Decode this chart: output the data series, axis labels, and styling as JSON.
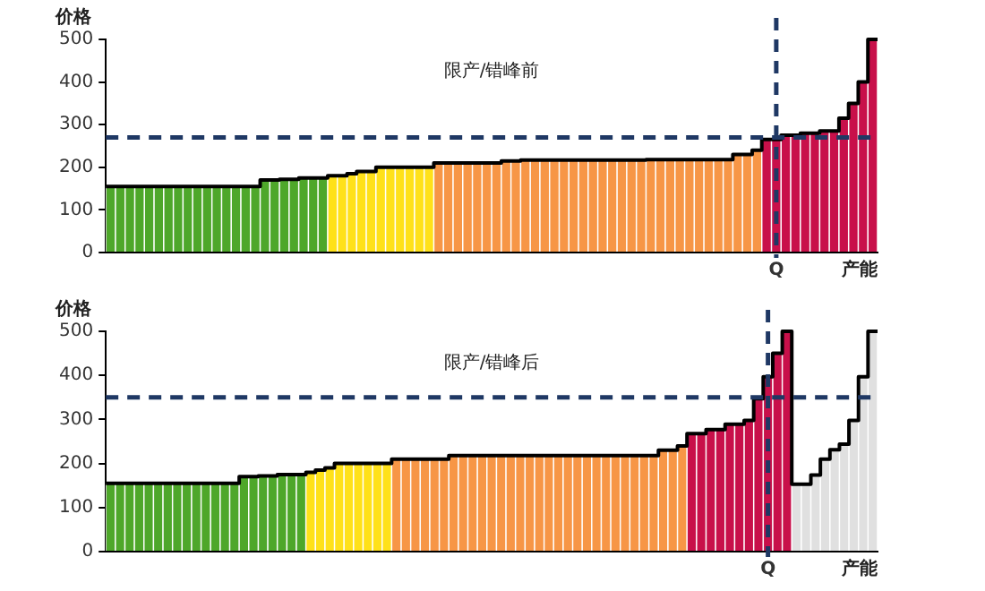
{
  "chart_data": [
    {
      "type": "bar",
      "annotations": [
        "限产/错峰前"
      ],
      "ylabel": "价格",
      "xlabel": "产能",
      "ylim": [
        0,
        500
      ],
      "yticks": [
        0,
        100,
        200,
        300,
        400,
        500
      ],
      "categories": [
        null,
        null,
        null,
        null,
        null,
        null,
        null,
        null,
        null,
        null,
        null,
        null,
        null,
        null,
        null,
        null,
        null,
        null,
        null,
        null,
        null,
        null,
        null,
        null,
        null,
        null,
        null,
        null,
        null,
        null,
        null,
        null,
        null,
        null,
        null,
        null,
        null,
        null,
        null,
        null,
        null,
        null,
        null,
        null,
        null,
        null,
        null,
        null,
        null,
        null,
        null,
        null,
        null,
        null,
        null,
        null,
        null,
        null,
        null,
        null,
        null,
        null,
        null,
        null,
        null,
        null,
        null,
        null,
        null,
        "Q",
        null,
        null,
        null,
        null,
        null,
        null,
        null,
        null,
        null,
        null
      ],
      "values": [
        155,
        155,
        155,
        155,
        155,
        155,
        155,
        155,
        155,
        155,
        155,
        155,
        155,
        155,
        155,
        155,
        170,
        170,
        172,
        172,
        175,
        175,
        175,
        180,
        180,
        185,
        190,
        190,
        200,
        200,
        200,
        200,
        200,
        200,
        210,
        210,
        210,
        210,
        210,
        210,
        210,
        215,
        215,
        217,
        217,
        217,
        217,
        217,
        217,
        217,
        217,
        217,
        217,
        217,
        217,
        217,
        218,
        218,
        218,
        218,
        218,
        218,
        218,
        218,
        218,
        230,
        230,
        240,
        265,
        265,
        275,
        275,
        280,
        280,
        285,
        285,
        315,
        350,
        400,
        500
      ],
      "colors": [
        "#4ea72a",
        "#4ea72a",
        "#4ea72a",
        "#4ea72a",
        "#4ea72a",
        "#4ea72a",
        "#4ea72a",
        "#4ea72a",
        "#4ea72a",
        "#4ea72a",
        "#4ea72a",
        "#4ea72a",
        "#4ea72a",
        "#4ea72a",
        "#4ea72a",
        "#4ea72a",
        "#4ea72a",
        "#4ea72a",
        "#4ea72a",
        "#4ea72a",
        "#4ea72a",
        "#4ea72a",
        "#4ea72a",
        "#ffe119",
        "#ffe119",
        "#ffe119",
        "#ffe119",
        "#ffe119",
        "#ffe119",
        "#ffe119",
        "#ffe119",
        "#ffe119",
        "#ffe119",
        "#ffe119",
        "#f79646",
        "#f79646",
        "#f79646",
        "#f79646",
        "#f79646",
        "#f79646",
        "#f79646",
        "#f79646",
        "#f79646",
        "#f79646",
        "#f79646",
        "#f79646",
        "#f79646",
        "#f79646",
        "#f79646",
        "#f79646",
        "#f79646",
        "#f79646",
        "#f79646",
        "#f79646",
        "#f79646",
        "#f79646",
        "#f79646",
        "#f79646",
        "#f79646",
        "#f79646",
        "#f79646",
        "#f79646",
        "#f79646",
        "#f79646",
        "#f79646",
        "#f79646",
        "#f79646",
        "#f79646",
        "#c8104a",
        "#c8104a",
        "#c8104a",
        "#c8104a",
        "#c8104a",
        "#c8104a",
        "#c8104a",
        "#c8104a",
        "#c8104a",
        "#c8104a",
        "#c8104a",
        "#c8104a"
      ],
      "ref_lines": [
        {
          "axis": "y",
          "value": 270,
          "color": "#1f3864",
          "line_style": "dashed"
        },
        {
          "axis": "x",
          "value": "Q",
          "color": "#1f3864",
          "line_style": "dashed"
        }
      ]
    },
    {
      "type": "bar",
      "annotations": [
        "限产/错峰后"
      ],
      "ylabel": "价格",
      "xlabel": "产能",
      "ylim": [
        0,
        500
      ],
      "yticks": [
        0,
        100,
        200,
        300,
        400,
        500
      ],
      "categories": [
        null,
        null,
        null,
        null,
        null,
        null,
        null,
        null,
        null,
        null,
        null,
        null,
        null,
        null,
        null,
        null,
        null,
        null,
        null,
        null,
        null,
        null,
        null,
        null,
        null,
        null,
        null,
        null,
        null,
        null,
        null,
        null,
        null,
        null,
        null,
        null,
        null,
        null,
        null,
        null,
        null,
        null,
        null,
        null,
        null,
        null,
        null,
        null,
        null,
        null,
        null,
        null,
        null,
        null,
        null,
        null,
        null,
        null,
        null,
        null,
        null,
        null,
        null,
        null,
        null,
        null,
        null,
        null,
        null,
        "Q",
        null,
        null,
        null,
        null,
        null,
        null,
        null,
        null,
        null,
        null,
        null
      ],
      "values": [
        155,
        155,
        155,
        155,
        155,
        155,
        155,
        155,
        155,
        155,
        155,
        155,
        155,
        155,
        170,
        170,
        172,
        172,
        175,
        175,
        175,
        180,
        185,
        190,
        200,
        200,
        200,
        200,
        200,
        200,
        210,
        210,
        210,
        210,
        210,
        210,
        218,
        218,
        218,
        218,
        218,
        218,
        218,
        218,
        218,
        218,
        218,
        218,
        218,
        218,
        218,
        218,
        218,
        218,
        218,
        218,
        218,
        218,
        230,
        230,
        240,
        268,
        268,
        277,
        277,
        289,
        289,
        298,
        347,
        397,
        450,
        500,
        153,
        153,
        174,
        210,
        231,
        244,
        298,
        397,
        500
      ],
      "colors": [
        "#4ea72a",
        "#4ea72a",
        "#4ea72a",
        "#4ea72a",
        "#4ea72a",
        "#4ea72a",
        "#4ea72a",
        "#4ea72a",
        "#4ea72a",
        "#4ea72a",
        "#4ea72a",
        "#4ea72a",
        "#4ea72a",
        "#4ea72a",
        "#4ea72a",
        "#4ea72a",
        "#4ea72a",
        "#4ea72a",
        "#4ea72a",
        "#4ea72a",
        "#4ea72a",
        "#ffe119",
        "#ffe119",
        "#ffe119",
        "#ffe119",
        "#ffe119",
        "#ffe119",
        "#ffe119",
        "#ffe119",
        "#ffe119",
        "#f79646",
        "#f79646",
        "#f79646",
        "#f79646",
        "#f79646",
        "#f79646",
        "#f79646",
        "#f79646",
        "#f79646",
        "#f79646",
        "#f79646",
        "#f79646",
        "#f79646",
        "#f79646",
        "#f79646",
        "#f79646",
        "#f79646",
        "#f79646",
        "#f79646",
        "#f79646",
        "#f79646",
        "#f79646",
        "#f79646",
        "#f79646",
        "#f79646",
        "#f79646",
        "#f79646",
        "#f79646",
        "#f79646",
        "#f79646",
        "#f79646",
        "#c8104a",
        "#c8104a",
        "#c8104a",
        "#c8104a",
        "#c8104a",
        "#c8104a",
        "#c8104a",
        "#c8104a",
        "#c8104a",
        "#c8104a",
        "#c8104a",
        "#e0e0e0",
        "#e0e0e0",
        "#e0e0e0",
        "#e0e0e0",
        "#e0e0e0",
        "#e0e0e0",
        "#e0e0e0",
        "#e0e0e0",
        "#e0e0e0"
      ],
      "ref_lines": [
        {
          "axis": "y",
          "value": 350,
          "color": "#1f3864",
          "line_style": "dashed"
        },
        {
          "axis": "x",
          "value": "Q",
          "color": "#1f3864",
          "line_style": "dashed"
        }
      ]
    }
  ]
}
